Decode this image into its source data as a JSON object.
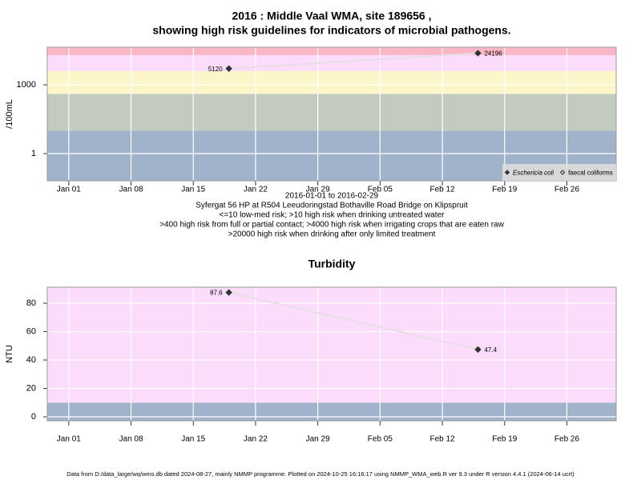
{
  "chart_data": [
    {
      "type": "line",
      "title": [
        "2016 : Middle Vaal WMA, site 189656 ,",
        "showing high risk guidelines for indicators of microbial pathogens."
      ],
      "y_label": "/100mL",
      "notes": [
        "2016-01-01 to 2016-02-29",
        "Syfergat 56 HP at R504 Leeudoringstad Bothaville Road Bridge on Klipspruit",
        "<=10 low-med risk; >10 high risk when drinking untreated water",
        ">400 high risk from full or partial contact; >4000 high risk when irrigating crops that are eaten raw",
        ">20000 high risk when drinking after only limited treatment"
      ],
      "x": [
        "2016-01-19",
        "2016-02-16"
      ],
      "series": [
        {
          "name": "Eschericia coli",
          "color": "#333333",
          "marker": "filled-diamond",
          "values": [
            5120,
            24196
          ]
        },
        {
          "name": "faecal coliforms",
          "color": "#333333",
          "marker": "open-diamond",
          "values": [
            null,
            null
          ]
        }
      ],
      "line_color": "#e6dde6",
      "log_y": true,
      "ylim": [
        0.065,
        44000
      ],
      "yticks": [
        1,
        1000
      ],
      "xlim": [
        "2015-12-29T14:00:00Z",
        "2016-03-02T13:00:00Z"
      ],
      "xticks": [
        {
          "value": "2016-01-01",
          "label": "Jan 01"
        },
        {
          "value": "2016-01-08",
          "label": "Jan 08"
        },
        {
          "value": "2016-01-15",
          "label": "Jan 15"
        },
        {
          "value": "2016-01-22",
          "label": "Jan 22"
        },
        {
          "value": "2016-01-29",
          "label": "Jan 29"
        },
        {
          "value": "2016-02-05",
          "label": "Feb 05"
        },
        {
          "value": "2016-02-12",
          "label": "Feb 12"
        },
        {
          "value": "2016-02-19",
          "label": "Feb 19"
        },
        {
          "value": "2016-02-26",
          "label": "Feb 26"
        }
      ],
      "band_breaks": [
        10,
        400,
        4000,
        20000
      ],
      "band_colors": [
        "#a1b3cb",
        "#c3cbbf",
        "#fdf6c9",
        "#fbddfb",
        "#f9b6c4"
      ],
      "grid": true,
      "legend": "bottom right"
    },
    {
      "type": "line",
      "title": "Turbidity",
      "y_label": "NTU",
      "x": [
        "2016-01-19",
        "2016-02-16"
      ],
      "series": [
        {
          "name": "Turbidity",
          "color": "#333333",
          "marker": "filled-diamond",
          "values": [
            87.6,
            47.4
          ]
        }
      ],
      "line_color": "#e6dde6",
      "log_y": false,
      "ylim": [
        -2.8,
        91.3
      ],
      "yticks": [
        0,
        20,
        40,
        60,
        80
      ],
      "xlim": [
        "2015-12-29T14:00:00Z",
        "2016-03-02T13:00:00Z"
      ],
      "xticks": [
        {
          "value": "2016-01-01",
          "label": "Jan 01"
        },
        {
          "value": "2016-01-08",
          "label": "Jan 08"
        },
        {
          "value": "2016-01-15",
          "label": "Jan 15"
        },
        {
          "value": "2016-01-22",
          "label": "Jan 22"
        },
        {
          "value": "2016-01-29",
          "label": "Jan 29"
        },
        {
          "value": "2016-02-05",
          "label": "Feb 05"
        },
        {
          "value": "2016-02-12",
          "label": "Feb 12"
        },
        {
          "value": "2016-02-19",
          "label": "Feb 19"
        },
        {
          "value": "2016-02-26",
          "label": "Feb 26"
        }
      ],
      "band_breaks": [
        10
      ],
      "band_colors": [
        "#a1b3cb",
        "#fbddfb"
      ],
      "grid": true
    }
  ],
  "footer": "Data from D:/data_large/wq/wms.db dated 2024-08-27, mainly NMMP programme. Plotted on 2024-10-25 16:16:17 using NMMP_WMA_web.R ver 9.3 under R version 4.4.1 (2024-06-14 ucrt)"
}
